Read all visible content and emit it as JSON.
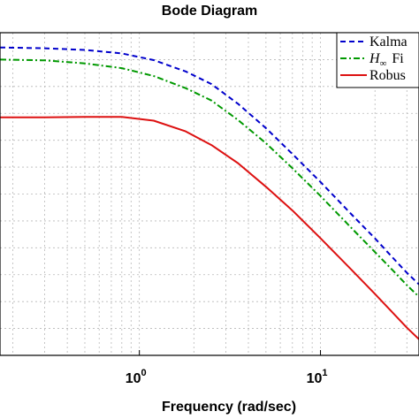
{
  "chart_data": {
    "type": "line",
    "title": "Bode Diagram",
    "xlabel": "Frequency  (rad/sec)",
    "ylabel": "",
    "xscale": "log",
    "xlim": [
      0.17,
      35
    ],
    "ylim": [
      -100,
      20
    ],
    "grid": true,
    "legend_position": "top-right",
    "x_ticks": [
      {
        "base": "10",
        "exp": "0",
        "value": 1
      },
      {
        "base": "10",
        "exp": "1",
        "value": 10
      }
    ],
    "legend": [
      {
        "text": "Kalma",
        "math": false
      },
      {
        "italic": "H",
        "sub": "∞",
        "text": "Fi",
        "math": true
      },
      {
        "text": "Robus",
        "math": false
      }
    ],
    "series": [
      {
        "color": "#0000cc",
        "dash": "dashed",
        "x": [
          0.17,
          0.3,
          0.5,
          0.8,
          1.2,
          1.8,
          2.5,
          3.5,
          5,
          7,
          10,
          15,
          20,
          25,
          30,
          35
        ],
        "y": [
          14.5,
          14.2,
          13.6,
          12.3,
          9.8,
          5.6,
          0.9,
          -6.4,
          -15.5,
          -25.1,
          -35.5,
          -47.9,
          -56.5,
          -63.6,
          -69.3,
          -73.6
        ]
      },
      {
        "color": "#009900",
        "dash": "dashdot",
        "x": [
          0.17,
          0.3,
          0.5,
          0.8,
          1.2,
          1.8,
          2.5,
          3.5,
          5,
          7,
          10,
          15,
          20,
          25,
          30,
          35
        ],
        "y": [
          10.0,
          9.7,
          8.6,
          6.8,
          3.9,
          -0.6,
          -5.2,
          -12.4,
          -21.1,
          -30.4,
          -40.7,
          -53.0,
          -61.6,
          -68.3,
          -73.9,
          -78.2
        ]
      },
      {
        "color": "#dd1111",
        "dash": "solid",
        "x": [
          0.17,
          0.3,
          0.5,
          0.8,
          1.2,
          1.8,
          2.5,
          3.5,
          5,
          7,
          10,
          15,
          20,
          25,
          30,
          35
        ],
        "y": [
          -11.5,
          -11.5,
          -11.3,
          -11.3,
          -12.7,
          -16.7,
          -21.8,
          -28.5,
          -37.3,
          -46.1,
          -56.4,
          -68.5,
          -77.2,
          -84.1,
          -89.7,
          -94.0
        ]
      }
    ]
  }
}
